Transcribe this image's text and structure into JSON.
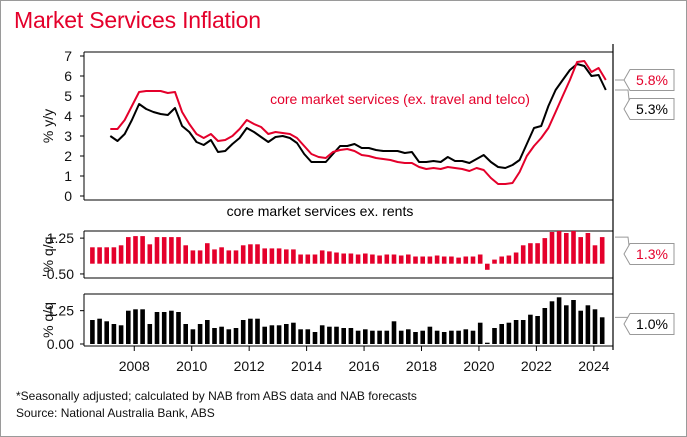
{
  "title": "Market Services Inflation",
  "footnote": "*Seasonally adjusted; calculated by NAB from ABS data and NAB forecasts",
  "source": "Source: National Australia Bank, ABS",
  "colors": {
    "accent": "#e4002b",
    "black": "#000000"
  },
  "chart_data": [
    {
      "type": "line",
      "ylabel": "% y/y",
      "ylim": [
        0,
        7
      ],
      "yticks": [
        "0",
        "1",
        "2",
        "3",
        "4",
        "5",
        "6",
        "7"
      ],
      "x_range": [
        "2006-04",
        "2024-09"
      ],
      "x": [
        "2007-03",
        "2007-06",
        "2007-09",
        "2007-12",
        "2008-03",
        "2008-06",
        "2008-09",
        "2008-12",
        "2009-03",
        "2009-06",
        "2009-09",
        "2009-12",
        "2010-03",
        "2010-06",
        "2010-09",
        "2010-12",
        "2011-03",
        "2011-06",
        "2011-09",
        "2011-12",
        "2012-03",
        "2012-06",
        "2012-09",
        "2012-12",
        "2013-03",
        "2013-06",
        "2013-09",
        "2013-12",
        "2014-03",
        "2014-06",
        "2014-09",
        "2014-12",
        "2015-03",
        "2015-06",
        "2015-09",
        "2015-12",
        "2016-03",
        "2016-06",
        "2016-09",
        "2016-12",
        "2017-03",
        "2017-06",
        "2017-09",
        "2017-12",
        "2018-03",
        "2018-06",
        "2018-09",
        "2018-12",
        "2019-03",
        "2019-06",
        "2019-09",
        "2019-12",
        "2020-03",
        "2020-06",
        "2020-09",
        "2020-12",
        "2021-03",
        "2021-06",
        "2021-09",
        "2021-12",
        "2022-03",
        "2022-06",
        "2022-09",
        "2022-12",
        "2023-03",
        "2023-06",
        "2023-09",
        "2023-12",
        "2024-03",
        "2024-06"
      ],
      "series": [
        {
          "name": "core market services (ex. travel and telco)",
          "color": "#e4002b",
          "end_label": "5.8%",
          "values": [
            3.35,
            3.35,
            3.8,
            4.5,
            5.2,
            5.25,
            5.25,
            5.25,
            5.15,
            5.2,
            4.2,
            3.6,
            3.1,
            2.9,
            3.1,
            2.75,
            2.8,
            3.0,
            3.35,
            3.8,
            3.6,
            3.45,
            3.1,
            3.2,
            3.15,
            3.1,
            2.9,
            2.5,
            2.1,
            1.95,
            1.9,
            2.2,
            2.3,
            2.35,
            2.25,
            2.05,
            2.0,
            1.9,
            1.85,
            1.8,
            1.7,
            1.65,
            1.65,
            1.45,
            1.35,
            1.4,
            1.35,
            1.45,
            1.4,
            1.35,
            1.25,
            1.4,
            1.3,
            0.9,
            0.6,
            0.6,
            0.65,
            1.2,
            2.0,
            2.5,
            2.9,
            3.4,
            4.2,
            5.0,
            5.8,
            6.7,
            6.75,
            6.2,
            6.4,
            5.8
          ]
        },
        {
          "name": "core market services ex. rents",
          "color": "#000000",
          "end_label": "5.3%",
          "values": [
            3.0,
            2.75,
            3.1,
            3.8,
            4.6,
            4.35,
            4.2,
            4.1,
            4.05,
            4.4,
            3.5,
            3.2,
            2.7,
            2.55,
            2.8,
            2.2,
            2.25,
            2.6,
            2.9,
            3.4,
            3.2,
            2.95,
            2.7,
            2.95,
            3.0,
            2.9,
            2.65,
            2.1,
            1.7,
            1.7,
            1.7,
            2.1,
            2.5,
            2.5,
            2.6,
            2.4,
            2.4,
            2.3,
            2.25,
            2.25,
            2.25,
            2.15,
            2.2,
            1.7,
            1.7,
            1.75,
            1.7,
            1.95,
            1.75,
            1.75,
            1.65,
            1.85,
            2.05,
            1.7,
            1.45,
            1.4,
            1.55,
            1.8,
            2.6,
            3.4,
            3.5,
            4.5,
            5.3,
            5.8,
            6.3,
            6.6,
            6.5,
            6.0,
            6.05,
            5.3
          ]
        }
      ],
      "annotations": [
        {
          "text": "core market services (ex. travel and telco)",
          "color": "#e4002b"
        },
        {
          "text": "core market services ex. rents",
          "color": "#000000"
        }
      ]
    },
    {
      "type": "bar",
      "ylabel": "% q/q",
      "ylim": [
        -0.6,
        1.5
      ],
      "yticks": [
        "1.25",
        "-0.50"
      ],
      "x": [
        "2006-09",
        "2006-12",
        "2007-03",
        "2007-06",
        "2007-09",
        "2007-12",
        "2008-03",
        "2008-06",
        "2008-09",
        "2008-12",
        "2009-03",
        "2009-06",
        "2009-09",
        "2009-12",
        "2010-03",
        "2010-06",
        "2010-09",
        "2010-12",
        "2011-03",
        "2011-06",
        "2011-09",
        "2011-12",
        "2012-03",
        "2012-06",
        "2012-09",
        "2012-12",
        "2013-03",
        "2013-06",
        "2013-09",
        "2013-12",
        "2014-03",
        "2014-06",
        "2014-09",
        "2014-12",
        "2015-03",
        "2015-06",
        "2015-09",
        "2015-12",
        "2016-03",
        "2016-06",
        "2016-09",
        "2016-12",
        "2017-03",
        "2017-06",
        "2017-09",
        "2017-12",
        "2018-03",
        "2018-06",
        "2018-09",
        "2018-12",
        "2019-03",
        "2019-06",
        "2019-09",
        "2019-12",
        "2020-03",
        "2020-06",
        "2020-09",
        "2020-12",
        "2021-03",
        "2021-06",
        "2021-09",
        "2021-12",
        "2022-03",
        "2022-06",
        "2022-09",
        "2022-12",
        "2023-03",
        "2023-06",
        "2023-09",
        "2023-12",
        "2024-03",
        "2024-06"
      ],
      "series": [
        {
          "name": "core market services (ex. travel and telco)",
          "color": "#e4002b",
          "end_label": "1.3%",
          "values": [
            0.8,
            0.8,
            0.8,
            0.8,
            0.9,
            1.3,
            1.35,
            1.35,
            0.95,
            1.3,
            1.3,
            1.3,
            1.3,
            0.9,
            0.65,
            0.65,
            1.0,
            0.7,
            0.8,
            0.65,
            0.65,
            0.9,
            0.95,
            0.95,
            0.75,
            0.75,
            0.75,
            0.7,
            0.7,
            0.45,
            0.45,
            0.45,
            0.65,
            0.6,
            0.55,
            0.5,
            0.5,
            0.45,
            0.5,
            0.45,
            0.4,
            0.45,
            0.45,
            0.4,
            0.45,
            0.35,
            0.35,
            0.35,
            0.4,
            0.35,
            0.35,
            0.3,
            0.35,
            0.35,
            0.45,
            -0.3,
            0.2,
            0.35,
            0.4,
            0.55,
            0.9,
            1.0,
            1.0,
            1.25,
            1.55,
            1.6,
            1.5,
            1.6,
            1.3,
            1.5,
            0.9,
            1.3
          ]
        }
      ]
    },
    {
      "type": "bar",
      "ylabel": "% q/q",
      "ylim": [
        0,
        1.8
      ],
      "yticks": [
        "1.25",
        "0.00"
      ],
      "x": [
        "2006-09",
        "2006-12",
        "2007-03",
        "2007-06",
        "2007-09",
        "2007-12",
        "2008-03",
        "2008-06",
        "2008-09",
        "2008-12",
        "2009-03",
        "2009-06",
        "2009-09",
        "2009-12",
        "2010-03",
        "2010-06",
        "2010-09",
        "2010-12",
        "2011-03",
        "2011-06",
        "2011-09",
        "2011-12",
        "2012-03",
        "2012-06",
        "2012-09",
        "2012-12",
        "2013-03",
        "2013-06",
        "2013-09",
        "2013-12",
        "2014-03",
        "2014-06",
        "2014-09",
        "2014-12",
        "2015-03",
        "2015-06",
        "2015-09",
        "2015-12",
        "2016-03",
        "2016-06",
        "2016-09",
        "2016-12",
        "2017-03",
        "2017-06",
        "2017-09",
        "2017-12",
        "2018-03",
        "2018-06",
        "2018-09",
        "2018-12",
        "2019-03",
        "2019-06",
        "2019-09",
        "2019-12",
        "2020-03",
        "2020-06",
        "2020-09",
        "2020-12",
        "2021-03",
        "2021-06",
        "2021-09",
        "2021-12",
        "2022-03",
        "2022-06",
        "2022-09",
        "2022-12",
        "2023-03",
        "2023-06",
        "2023-09",
        "2023-12",
        "2024-03",
        "2024-06"
      ],
      "series": [
        {
          "name": "core market services ex. rents",
          "color": "#000000",
          "end_label": "1.0%",
          "values": [
            0.9,
            0.95,
            0.85,
            0.75,
            0.7,
            1.25,
            1.3,
            1.3,
            0.75,
            1.2,
            1.2,
            1.25,
            1.2,
            0.75,
            0.55,
            0.75,
            0.9,
            0.6,
            0.65,
            0.55,
            0.6,
            0.9,
            0.95,
            0.95,
            0.65,
            0.7,
            0.7,
            0.75,
            0.8,
            0.55,
            0.55,
            0.45,
            0.7,
            0.65,
            0.65,
            0.6,
            0.6,
            0.5,
            0.55,
            0.5,
            0.5,
            0.5,
            0.85,
            0.5,
            0.55,
            0.45,
            0.5,
            0.65,
            0.5,
            0.45,
            0.5,
            0.5,
            0.55,
            0.5,
            0.8,
            0.05,
            0.6,
            0.75,
            0.8,
            0.9,
            0.9,
            1.1,
            1.05,
            1.35,
            1.6,
            1.75,
            1.45,
            1.65,
            1.25,
            1.45,
            1.3,
            1.0
          ]
        }
      ]
    }
  ],
  "x_tick_labels": [
    "2008",
    "2010",
    "2012",
    "2014",
    "2016",
    "2018",
    "2020",
    "2022",
    "2024"
  ],
  "x_tick_years": [
    2008,
    2010,
    2012,
    2014,
    2016,
    2018,
    2020,
    2022,
    2024
  ]
}
